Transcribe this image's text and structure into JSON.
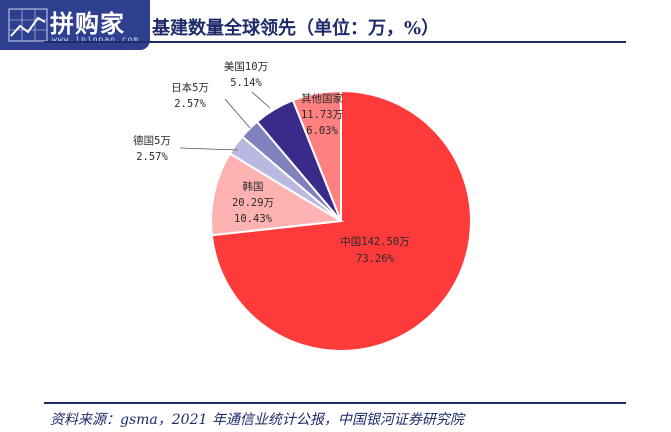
{
  "watermark": {
    "text": "拼购家",
    "url": "www.ipinpao.com"
  },
  "header": {
    "title": "基建数量全球领先（单位：万，%）"
  },
  "footer": {
    "source": "资料来源：gsma，2021 年通信业统计公报，中国银河证券研究院"
  },
  "colors": {
    "accent": "#1f2a6b"
  },
  "chart_data": {
    "type": "pie",
    "title": "基建数量全球领先（单位：万，%）",
    "unit": "万",
    "slices": [
      {
        "name": "中国",
        "value": 142.5,
        "percent": 73.26,
        "color": "#ff3a3a",
        "label1": "中国142.50万",
        "label2": "73.26%"
      },
      {
        "name": "韩国",
        "value": 20.29,
        "percent": 10.43,
        "color": "#ffb2b2",
        "label1": "韩国",
        "label2": "20.29万",
        "label3": "10.43%"
      },
      {
        "name": "德国",
        "value": 5,
        "percent": 2.57,
        "color": "#b8b8e0",
        "label1": "德国5万",
        "label2": "2.57%"
      },
      {
        "name": "日本",
        "value": 5,
        "percent": 2.57,
        "color": "#8080bc",
        "label1": "日本5万",
        "label2": "2.57%"
      },
      {
        "name": "美国",
        "value": 10,
        "percent": 5.14,
        "color": "#3a2a8a",
        "label1": "美国10万",
        "label2": "5.14%"
      },
      {
        "name": "其他国家",
        "value": 11.73,
        "percent": 6.03,
        "color": "#ff8080",
        "label1": "其他国家",
        "label2": "11.73万",
        "label3": "6.03%"
      }
    ]
  }
}
